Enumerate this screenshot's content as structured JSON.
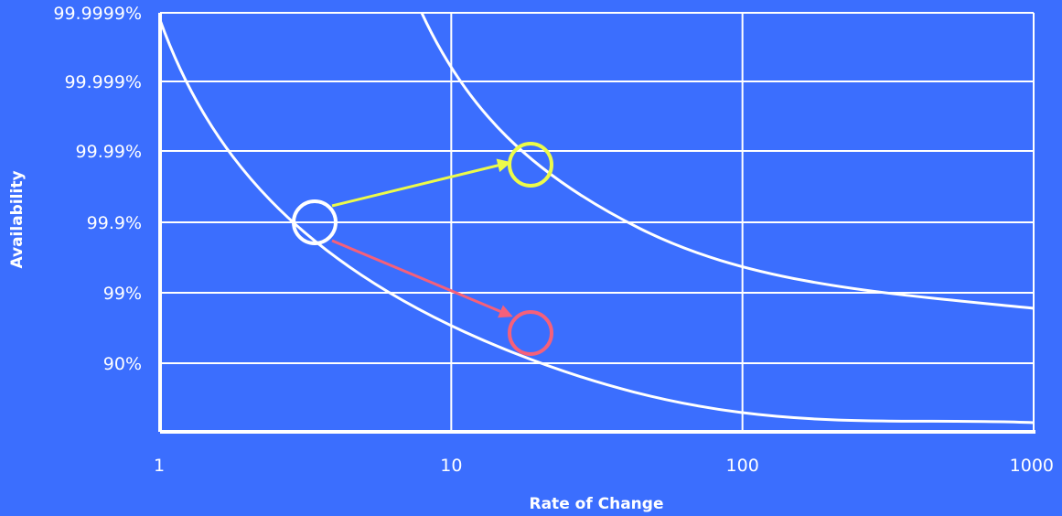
{
  "chart_data": {
    "type": "line",
    "xlabel": "Rate of Change",
    "ylabel": "Availability",
    "x_scale": "log",
    "xlim": [
      1,
      1000
    ],
    "x_ticks": [
      "1",
      "10",
      "100",
      "1000"
    ],
    "y_ticks": [
      "90%",
      "99%",
      "99.9%",
      "99.99%",
      "99.999%",
      "99.9999%"
    ],
    "grid": true,
    "series": [
      {
        "points": [
          [
            1,
            "99.9999%"
          ],
          [
            3.3,
            "99.9%"
          ],
          [
            18,
            "99%"
          ],
          [
            100,
            "90%"
          ],
          [
            1000,
            "89%"
          ]
        ]
      },
      {
        "points": [
          [
            9.2,
            "99.9999%"
          ],
          [
            10,
            "99.999%"
          ],
          [
            18,
            "99.99%"
          ],
          [
            50,
            "99.9%"
          ],
          [
            300,
            "99%"
          ],
          [
            1000,
            "98.8%"
          ]
        ]
      }
    ],
    "markers": [
      {
        "x": 3.3,
        "y": "99.9%",
        "color": "#ffffff"
      },
      {
        "x": 18,
        "y": "99.99%",
        "color": "#ecfb4a"
      },
      {
        "x": 18,
        "y": "99%",
        "color": "#f5607a"
      }
    ],
    "arrows": [
      {
        "from": [
          3.3,
          "99.9%"
        ],
        "to": [
          18,
          "99.99%"
        ],
        "color": "#ecfb4a"
      },
      {
        "from": [
          3.3,
          "99.9%"
        ],
        "to": [
          18,
          "99%"
        ],
        "color": "#f5607a"
      }
    ],
    "colors": {
      "background": "#3b6efe",
      "lines": "#ffffff",
      "improve": "#ecfb4a",
      "degrade": "#f5607a"
    }
  }
}
